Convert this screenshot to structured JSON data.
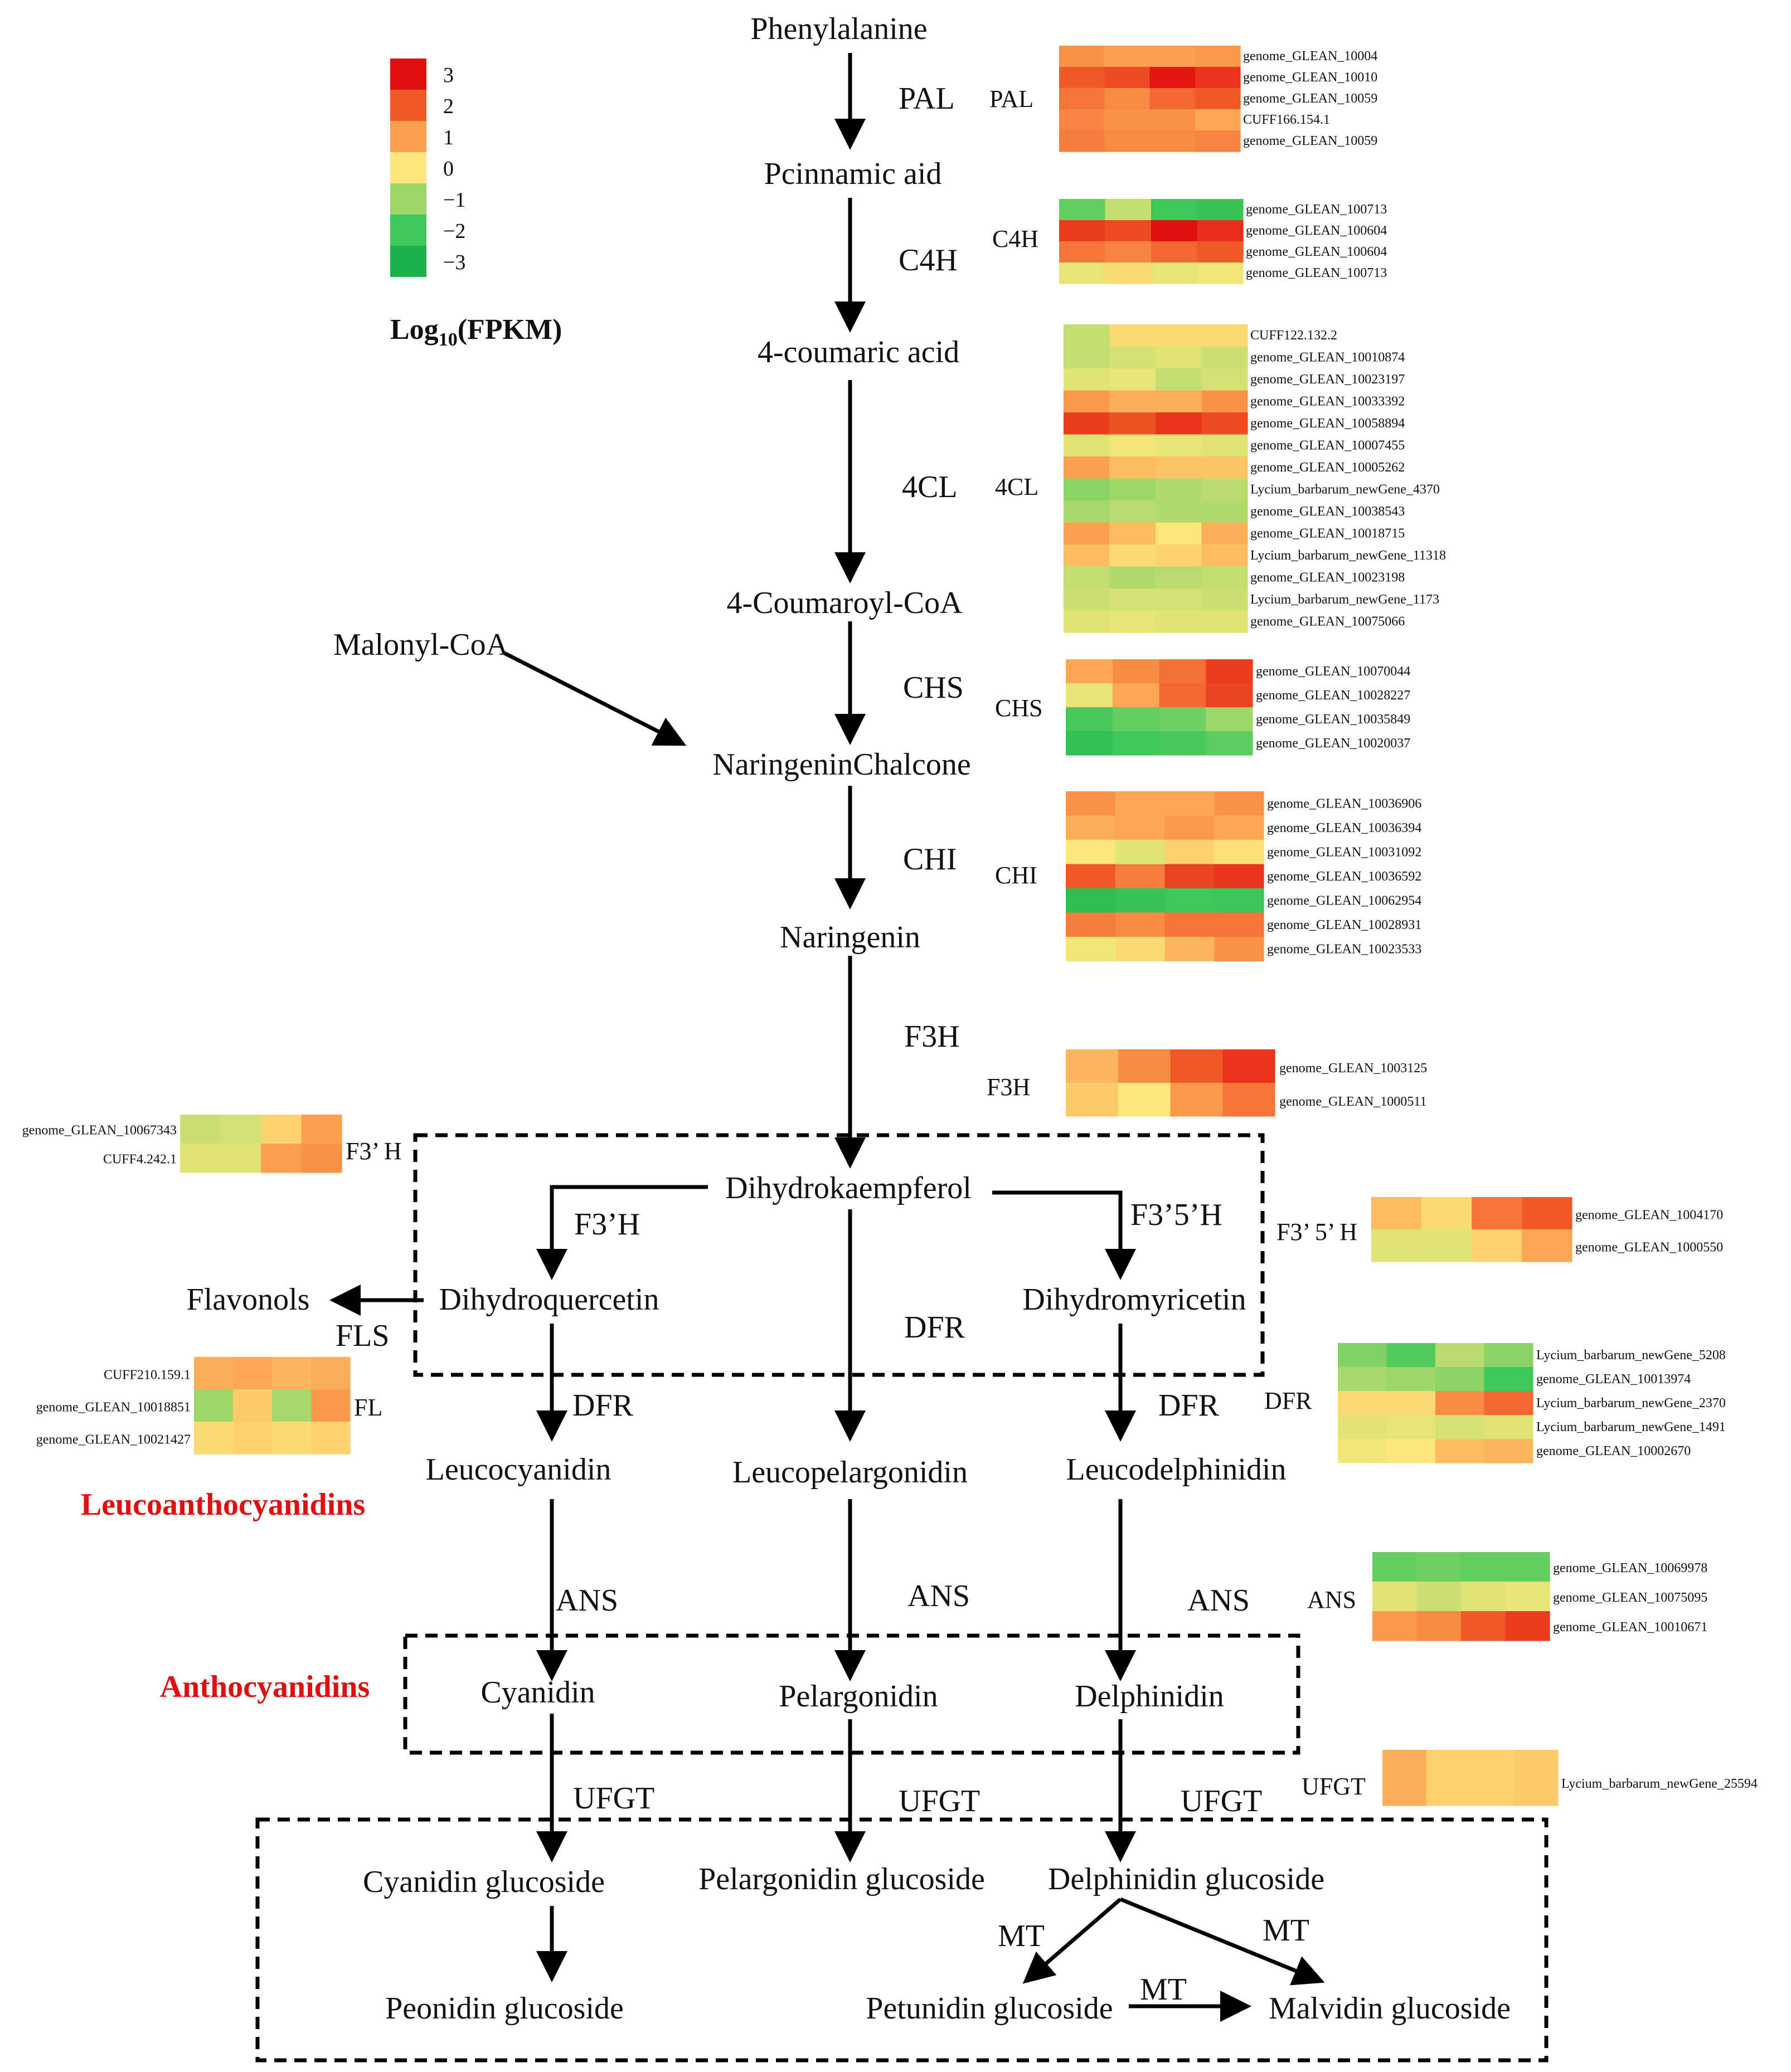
{
  "legend": {
    "title": "Log10(FPKM)",
    "title_main": "Log",
    "title_sub": "10",
    "title_tail": "(FPKM)",
    "entries": [
      {
        "label": "3",
        "color": "#e01010"
      },
      {
        "label": "2",
        "color": "#f05a28"
      },
      {
        "label": "1",
        "color": "#fca050"
      },
      {
        "label": "0",
        "color": "#fce87a"
      },
      {
        "label": "−1",
        "color": "#9ed66a"
      },
      {
        "label": "−2",
        "color": "#3ec85a"
      },
      {
        "label": "−3",
        "color": "#1ab04a"
      }
    ]
  },
  "compounds": {
    "phenylalanine": "Phenylalanine",
    "pcinnamic": "Pcinnamic aid",
    "coumaric": "4-coumaric acid",
    "coumaroyl": "4-Coumaroyl-CoA",
    "malonyl": "Malonyl-CoA",
    "chalcone": "NaringeninChalcone",
    "naringenin": "Naringenin",
    "dihydrokaempferol": "Dihydrokaempferol",
    "dihydroquercetin": "Dihydroquercetin",
    "dihydromyricetin": "Dihydromyricetin",
    "flavonols": "Flavonols",
    "leucocyanidin": "Leucocyanidin",
    "leucopelargonidin": "Leucopelargonidin",
    "leucodelphinidin": "Leucodelphinidin",
    "cyanidin": "Cyanidin",
    "pelargonidin": "Pelargonidin",
    "delphinidin": "Delphinidin",
    "cyanidin_glc": "Cyanidin glucoside",
    "pelargonidin_glc": "Pelargonidin glucoside",
    "delphinidin_glc": "Delphinidin glucoside",
    "peonidin_glc": "Peonidin glucoside",
    "petunidin_glc": "Petunidin glucoside",
    "malvidin_glc": "Malvidin glucoside"
  },
  "groups": {
    "leucoanthocyanidins": "Leucoanthocyanidins",
    "anthocyanidins": "Anthocyanidins"
  },
  "enzymes": {
    "pal": "PAL",
    "c4h": "C4H",
    "fourcl": "4CL",
    "chs": "CHS",
    "chi": "CHI",
    "f3h": "F3H",
    "f3h_prime": "F3’H",
    "f35h": "F3’5’H",
    "dfr": "DFR",
    "fls": "FLS",
    "ans": "ANS",
    "ufgt": "UFGT",
    "mt": "MT"
  },
  "heatmaps": {
    "pal": {
      "label": "PAL",
      "genes": [
        "genome_GLEAN_10004",
        "genome_GLEAN_10010",
        "genome_GLEAN_10059",
        "CUFF166.154.1",
        "genome_GLEAN_10059"
      ],
      "values": [
        [
          1.2,
          1.0,
          1.0,
          1.1
        ],
        [
          2.0,
          2.2,
          2.9,
          2.5
        ],
        [
          1.6,
          1.3,
          1.8,
          2.0
        ],
        [
          1.4,
          1.2,
          1.2,
          0.9
        ],
        [
          1.5,
          1.3,
          1.3,
          1.4
        ]
      ]
    },
    "c4h": {
      "label": "C4H",
      "genes": [
        "genome_GLEAN_100713",
        "genome_GLEAN_100604",
        "genome_GLEAN_100604",
        "genome_GLEAN_100713"
      ],
      "values": [
        [
          -1.6,
          -0.6,
          -2.0,
          -2.2
        ],
        [
          2.4,
          2.2,
          3.0,
          2.6
        ],
        [
          1.6,
          1.4,
          1.8,
          2.0
        ],
        [
          -0.2,
          0.2,
          -0.2,
          -0.1
        ]
      ]
    },
    "fourcl": {
      "label": "4CL",
      "genes": [
        "CUFF122.132.2",
        "genome_GLEAN_10010874",
        "genome_GLEAN_10023197",
        "genome_GLEAN_10033392",
        "genome_GLEAN_10058894",
        "genome_GLEAN_10007455",
        "genome_GLEAN_10005262",
        "Lycium_barbarum_newGene_4370",
        "genome_GLEAN_10038543",
        "genome_GLEAN_10018715",
        "Lycium_barbarum_newGene_11318",
        "genome_GLEAN_10023198",
        "Lycium_barbarum_newGene_1173",
        "genome_GLEAN_10075066"
      ],
      "values": [
        [
          -0.6,
          0.2,
          0.2,
          0.2
        ],
        [
          -0.6,
          -0.4,
          -0.3,
          -0.5
        ],
        [
          -0.3,
          -0.2,
          -0.6,
          -0.4
        ],
        [
          1.1,
          0.8,
          0.8,
          1.2
        ],
        [
          2.4,
          2.1,
          2.5,
          2.2
        ],
        [
          -0.3,
          -0.1,
          -0.2,
          -0.3
        ],
        [
          1.0,
          0.6,
          0.5,
          0.5
        ],
        [
          -1.2,
          -1.0,
          -0.8,
          -0.7
        ],
        [
          -0.9,
          -0.7,
          -0.8,
          -0.8
        ],
        [
          1.0,
          0.6,
          0.0,
          0.8
        ],
        [
          0.6,
          0.2,
          0.3,
          0.6
        ],
        [
          -0.6,
          -0.8,
          -0.7,
          -0.6
        ],
        [
          -0.5,
          -0.4,
          -0.4,
          -0.5
        ],
        [
          -0.3,
          -0.2,
          -0.3,
          -0.3
        ]
      ]
    },
    "chs": {
      "label": "CHS",
      "genes": [
        "genome_GLEAN_10070044",
        "genome_GLEAN_10028227",
        "genome_GLEAN_10035849",
        "genome_GLEAN_10020037"
      ],
      "values": [
        [
          0.9,
          1.3,
          1.7,
          2.4
        ],
        [
          -0.2,
          0.9,
          1.8,
          2.3
        ],
        [
          -1.9,
          -1.6,
          -1.5,
          -1.0
        ],
        [
          -2.3,
          -2.0,
          -1.9,
          -1.7
        ]
      ]
    },
    "chi": {
      "label": "CHI",
      "genes": [
        "genome_GLEAN_10036906",
        "genome_GLEAN_10036394",
        "genome_GLEAN_10031092",
        "genome_GLEAN_10036592",
        "genome_GLEAN_10062954",
        "genome_GLEAN_10028931",
        "genome_GLEAN_10023533"
      ],
      "values": [
        [
          1.2,
          0.9,
          0.9,
          1.2
        ],
        [
          0.8,
          0.9,
          1.1,
          0.9
        ],
        [
          0.0,
          -0.3,
          0.3,
          0.1
        ],
        [
          2.0,
          1.5,
          2.3,
          2.5
        ],
        [
          -2.4,
          -2.2,
          -2.0,
          -2.1
        ],
        [
          1.5,
          1.3,
          1.6,
          1.6
        ],
        [
          -0.1,
          0.2,
          0.7,
          1.2
        ]
      ]
    },
    "f3h": {
      "label": "F3H",
      "genes": [
        "genome_GLEAN_1003125",
        "genome_GLEAN_1000511"
      ],
      "values": [
        [
          0.7,
          1.3,
          2.0,
          2.5
        ],
        [
          0.4,
          0.0,
          1.1,
          1.6
        ]
      ]
    },
    "f3h_prime": {
      "label": "F3’ H",
      "genes": [
        "genome_GLEAN_10067343",
        "CUFF4.242.1"
      ],
      "values": [
        [
          -0.5,
          -0.4,
          0.3,
          1.0
        ],
        [
          -0.3,
          -0.3,
          1.0,
          1.2
        ]
      ]
    },
    "f35h": {
      "label": "F3’ 5’ H",
      "genes": [
        "genome_GLEAN_1004170",
        "genome_GLEAN_1000550"
      ],
      "values": [
        [
          0.6,
          0.2,
          1.6,
          2.0
        ],
        [
          -0.3,
          -0.3,
          0.3,
          0.9
        ]
      ]
    },
    "fls": {
      "label": "FL",
      "genes": [
        "CUFF210.159.1",
        "genome_GLEAN_10018851",
        "genome_GLEAN_10021427"
      ],
      "values": [
        [
          0.8,
          0.9,
          0.7,
          0.8
        ],
        [
          -1.0,
          0.4,
          -0.9,
          1.1
        ],
        [
          0.2,
          0.3,
          0.2,
          0.3
        ]
      ]
    },
    "dfr": {
      "label": "DFR",
      "genes": [
        "Lycium_barbarum_newGene_5208",
        "genome_GLEAN_10013974",
        "Lycium_barbarum_newGene_2370",
        "Lycium_barbarum_newGene_1491",
        "genome_GLEAN_10002670"
      ],
      "values": [
        [
          -1.3,
          -1.8,
          -0.7,
          -1.2
        ],
        [
          -0.9,
          -1.0,
          -1.2,
          -2.0
        ],
        [
          0.2,
          0.2,
          1.3,
          1.8
        ],
        [
          -0.3,
          -0.2,
          -0.4,
          -0.3
        ],
        [
          -0.1,
          0.0,
          0.6,
          0.7
        ]
      ]
    },
    "ans": {
      "label": "ANS",
      "genes": [
        "genome_GLEAN_10069978",
        "genome_GLEAN_10075095",
        "genome_GLEAN_10010671"
      ],
      "values": [
        [
          -1.6,
          -1.5,
          -1.6,
          -1.6
        ],
        [
          -0.3,
          -0.5,
          -0.3,
          -0.2
        ],
        [
          1.1,
          1.3,
          2.0,
          2.4
        ]
      ]
    },
    "ufgt": {
      "label": "UFGT",
      "genes": [
        "Lycium_barbarum_newGene_25594"
      ],
      "values": [
        [
          0.8,
          0.3,
          0.3,
          0.4
        ]
      ]
    }
  }
}
